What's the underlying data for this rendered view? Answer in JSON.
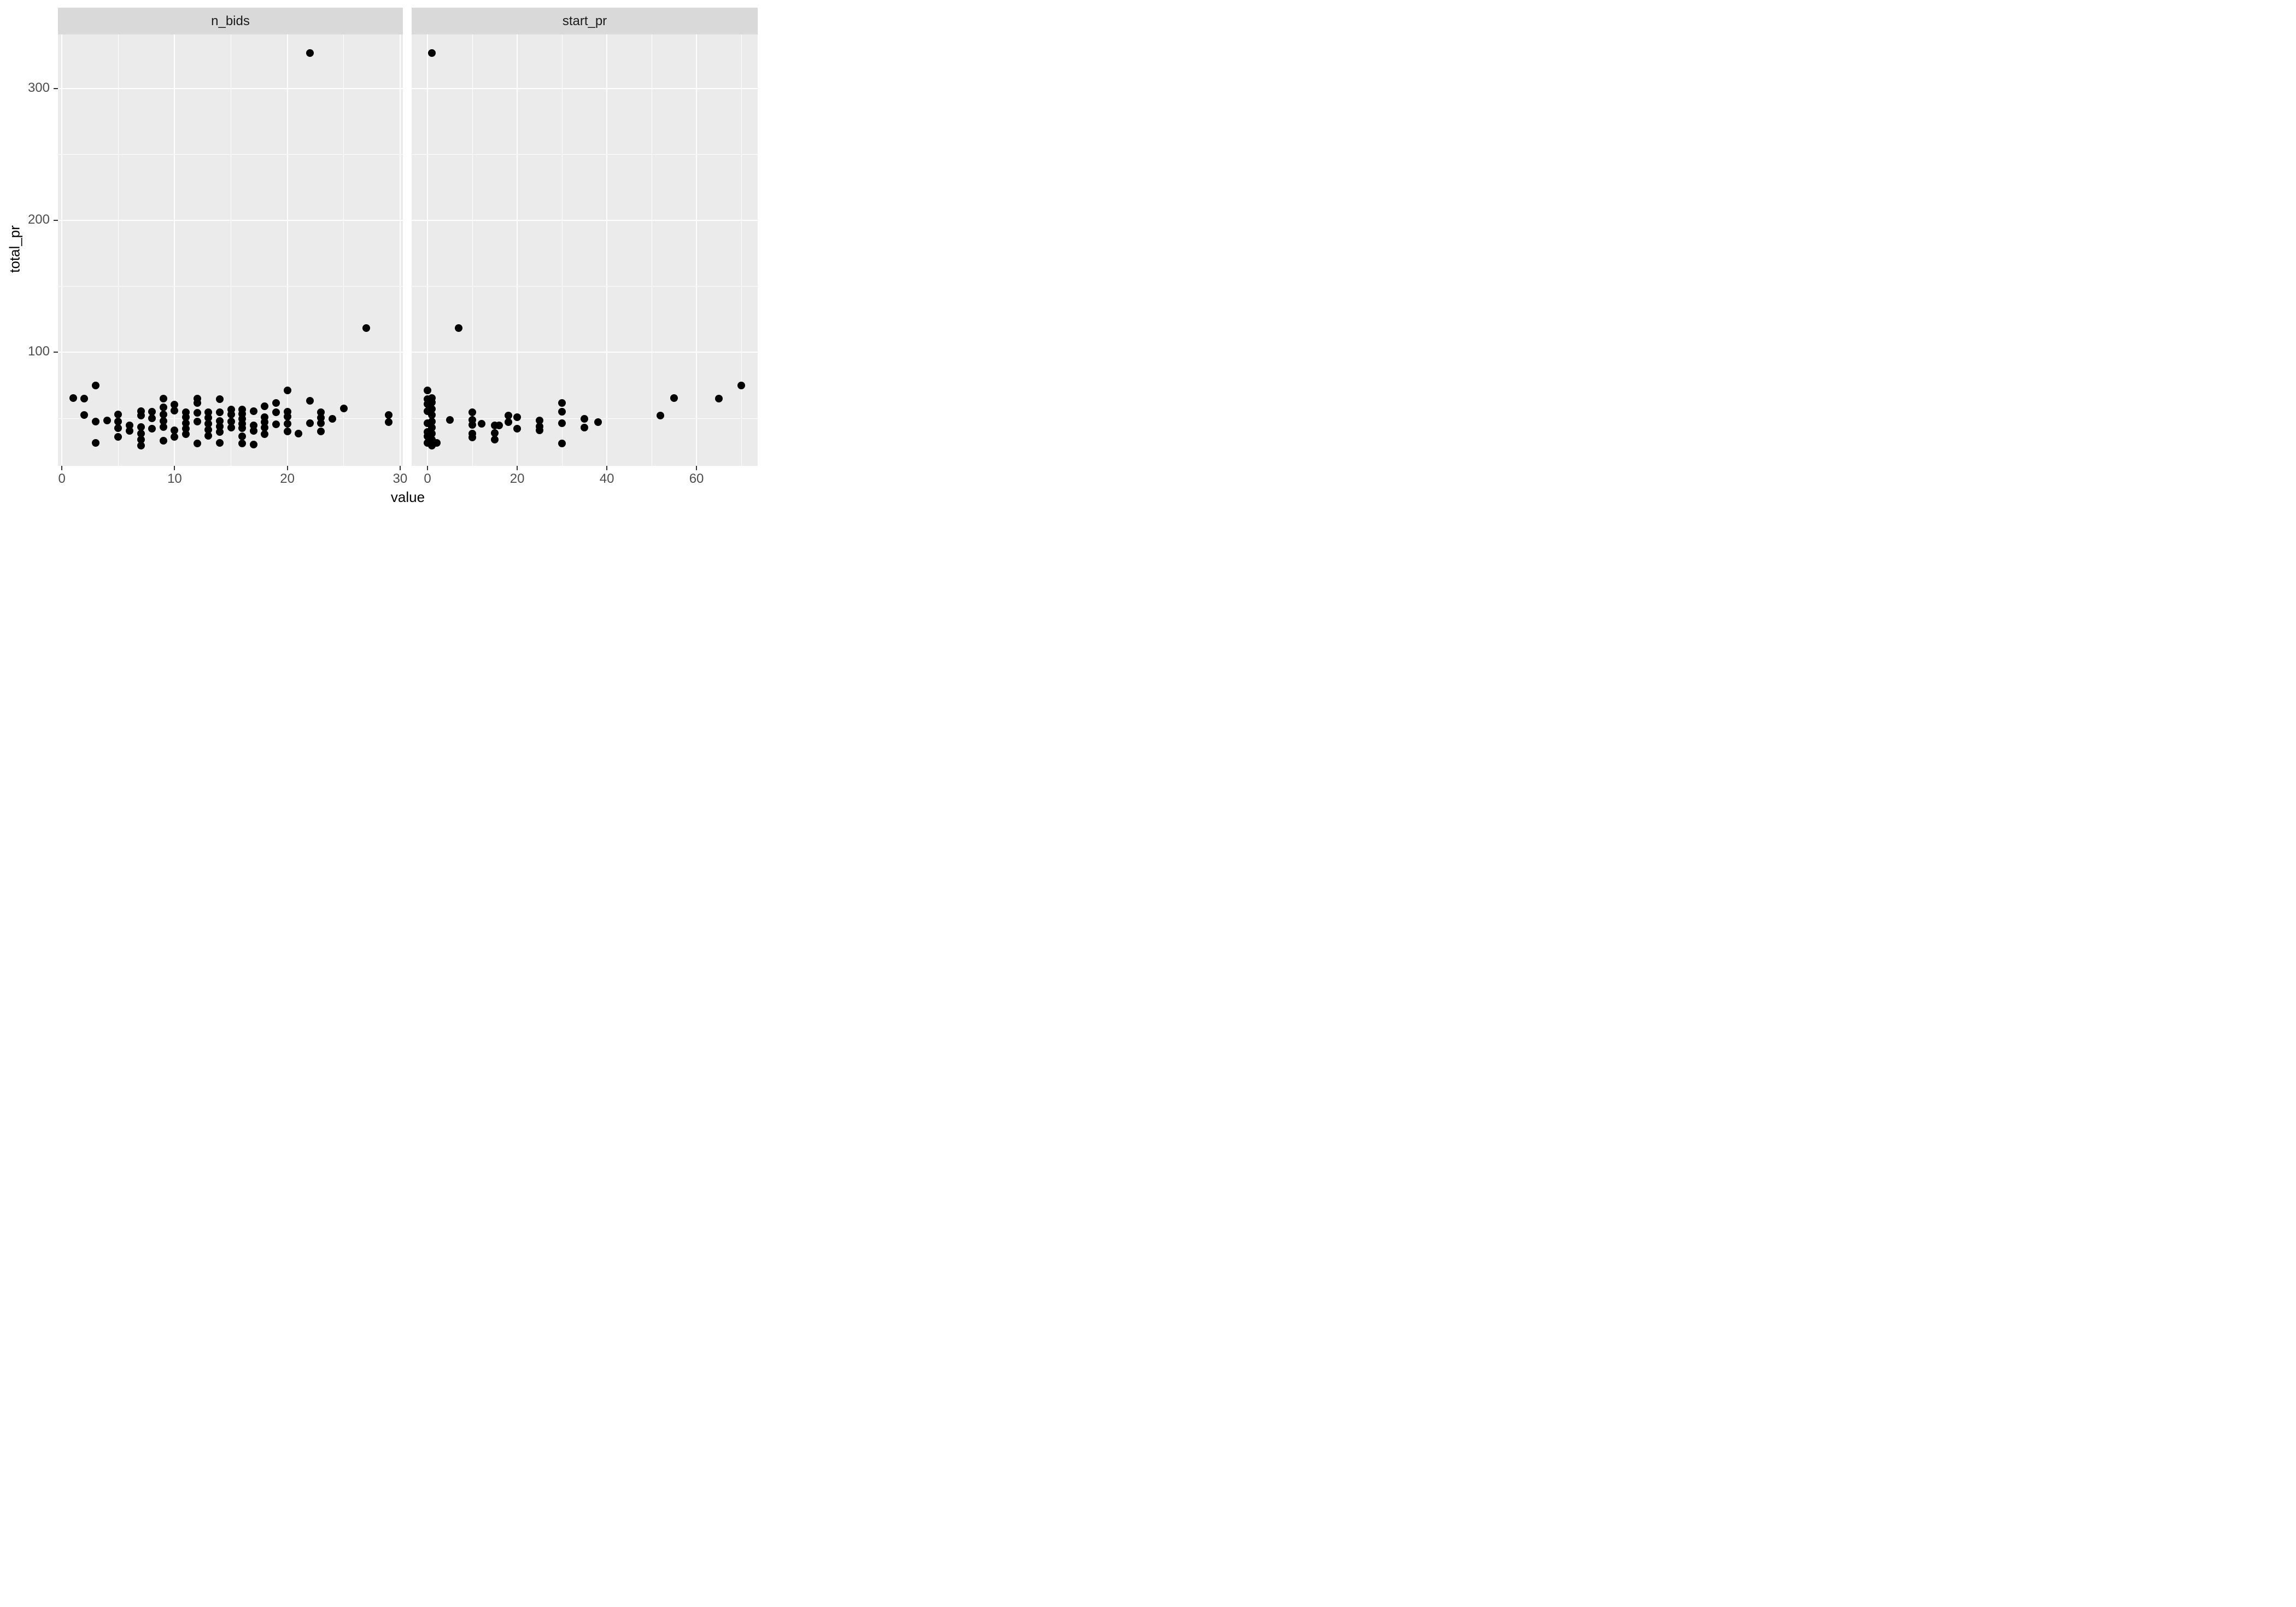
{
  "chart_data": {
    "type": "scatter",
    "title": "",
    "xlabel": "value",
    "ylabel": "total_pr",
    "legend_position": "none",
    "grid": "on",
    "panel_bg": "#ebebeb",
    "strip_bg": "#d9d9d9",
    "plot_bg": "#ffffff",
    "point_color": "#000000",
    "gridline_color": "#ffffff",
    "tick_color": "#333333",
    "tick_label_color": "#4d4d4d",
    "title_color": "#000000",
    "y_axis": {
      "domain": [
        14,
        341
      ],
      "major_ticks": [
        100,
        200,
        300
      ],
      "minor_gridlines": [
        50,
        150,
        250
      ]
    },
    "facets": [
      {
        "label": "n_bids",
        "x_domain": [
          -0.35,
          30.25
        ],
        "major_ticks": [
          0,
          10,
          20,
          30
        ],
        "minor_gridlines": [
          5,
          15,
          25
        ],
        "points": [
          [
            1,
            65.5
          ],
          [
            2,
            65
          ],
          [
            2,
            52.5
          ],
          [
            3,
            75
          ],
          [
            3,
            47.5
          ],
          [
            3,
            31.5
          ],
          [
            4,
            48.5
          ],
          [
            5,
            53
          ],
          [
            5,
            47.5
          ],
          [
            5,
            42.5
          ],
          [
            5,
            36
          ],
          [
            6,
            44.5
          ],
          [
            6,
            40.5
          ],
          [
            7,
            55.5
          ],
          [
            7,
            52
          ],
          [
            7,
            43.5
          ],
          [
            7,
            38.5
          ],
          [
            7,
            34
          ],
          [
            7,
            29.5
          ],
          [
            8,
            55
          ],
          [
            8,
            50
          ],
          [
            8,
            42
          ],
          [
            9,
            65
          ],
          [
            9,
            58.5
          ],
          [
            9,
            53
          ],
          [
            9,
            48
          ],
          [
            9,
            43.5
          ],
          [
            9,
            33
          ],
          [
            10,
            60.5
          ],
          [
            10,
            56
          ],
          [
            10,
            41
          ],
          [
            10,
            36
          ],
          [
            11,
            54.5
          ],
          [
            11,
            51
          ],
          [
            11,
            46.5
          ],
          [
            11,
            42
          ],
          [
            11,
            38
          ],
          [
            12,
            65
          ],
          [
            12,
            61.5
          ],
          [
            12,
            54
          ],
          [
            12,
            47.5
          ],
          [
            12,
            31
          ],
          [
            13,
            54.5
          ],
          [
            13,
            50.5
          ],
          [
            13,
            46
          ],
          [
            13,
            41.5
          ],
          [
            13,
            37
          ],
          [
            14,
            64.5
          ],
          [
            14,
            54.5
          ],
          [
            14,
            48
          ],
          [
            14,
            44
          ],
          [
            14,
            39.5
          ],
          [
            14,
            31.5
          ],
          [
            15,
            56.5
          ],
          [
            15,
            53
          ],
          [
            15,
            47.5
          ],
          [
            15,
            43
          ],
          [
            16,
            56.5
          ],
          [
            16,
            53.5
          ],
          [
            16,
            49.5
          ],
          [
            16,
            46
          ],
          [
            16,
            42.5
          ],
          [
            16,
            36.5
          ],
          [
            16,
            31
          ],
          [
            17,
            55.5
          ],
          [
            17,
            44.5
          ],
          [
            17,
            40.5
          ],
          [
            17,
            30
          ],
          [
            18,
            59
          ],
          [
            18,
            51
          ],
          [
            18,
            47
          ],
          [
            18,
            43
          ],
          [
            18,
            38
          ],
          [
            19,
            61.5
          ],
          [
            19,
            54.5
          ],
          [
            19,
            45.5
          ],
          [
            20,
            71
          ],
          [
            20,
            55
          ],
          [
            20,
            51.5
          ],
          [
            20,
            46
          ],
          [
            20,
            40
          ],
          [
            21,
            38.5
          ],
          [
            22,
            326.9
          ],
          [
            22,
            63.5
          ],
          [
            22,
            46.5
          ],
          [
            23,
            54.5
          ],
          [
            23,
            50.5
          ],
          [
            23,
            46.5
          ],
          [
            23,
            40
          ],
          [
            24,
            49.5
          ],
          [
            25,
            57.5
          ],
          [
            27,
            118.5
          ],
          [
            29,
            52.5
          ],
          [
            29,
            47
          ]
        ]
      },
      {
        "label": "start_pr",
        "x_domain": [
          -3.55,
          73.65
        ],
        "major_ticks": [
          0,
          20,
          40,
          60
        ],
        "minor_gridlines": [
          10,
          30,
          50,
          70
        ],
        "points": [
          [
            0.01,
            71
          ],
          [
            0.01,
            64.5
          ],
          [
            0.01,
            61
          ],
          [
            0.01,
            55.5
          ],
          [
            0.01,
            46.5
          ],
          [
            0.01,
            39.5
          ],
          [
            0.01,
            36.5
          ],
          [
            0.01,
            31.5
          ],
          [
            0.99,
            326.9
          ],
          [
            0.99,
            65.5
          ],
          [
            0.99,
            62
          ],
          [
            0.99,
            57
          ],
          [
            0.99,
            52.5
          ],
          [
            0.99,
            47.5
          ],
          [
            0.99,
            43
          ],
          [
            0.99,
            38.5
          ],
          [
            0.99,
            34
          ],
          [
            0.99,
            29.5
          ],
          [
            2,
            31.5
          ],
          [
            5,
            49
          ],
          [
            6.95,
            118.5
          ],
          [
            10,
            54.5
          ],
          [
            10,
            49
          ],
          [
            10,
            45
          ],
          [
            10,
            38.5
          ],
          [
            10,
            35.5
          ],
          [
            12,
            46
          ],
          [
            15,
            44.5
          ],
          [
            15,
            39
          ],
          [
            15,
            34
          ],
          [
            16,
            44.5
          ],
          [
            18,
            52
          ],
          [
            18,
            47
          ],
          [
            20,
            51
          ],
          [
            20,
            42
          ],
          [
            25,
            48.5
          ],
          [
            25,
            44
          ],
          [
            25,
            41
          ],
          [
            30,
            61.5
          ],
          [
            30,
            55
          ],
          [
            30,
            46.5
          ],
          [
            30,
            31
          ],
          [
            35,
            49.5
          ],
          [
            35,
            43
          ],
          [
            38,
            47
          ],
          [
            52,
            52
          ],
          [
            55,
            65.5
          ],
          [
            65,
            65
          ],
          [
            70,
            75
          ]
        ]
      }
    ]
  }
}
